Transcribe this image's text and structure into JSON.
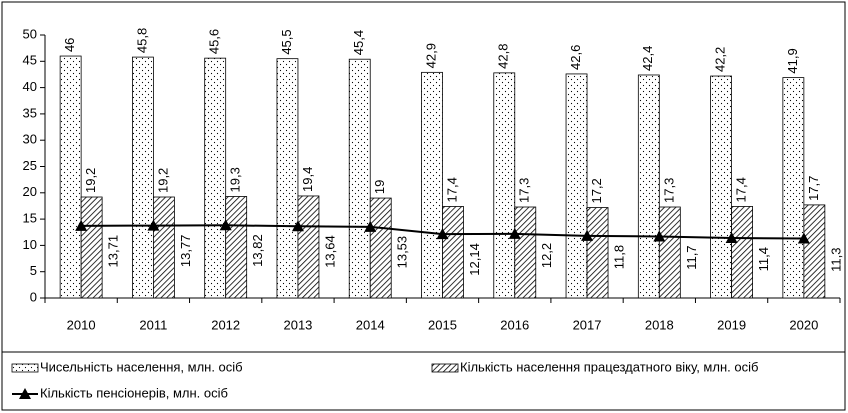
{
  "chart_data": {
    "type": "bar",
    "categories": [
      "2010",
      "2011",
      "2012",
      "2013",
      "2014",
      "2015",
      "2016",
      "2017",
      "2018",
      "2019",
      "2020"
    ],
    "series": [
      {
        "name": "Чисельність населення, млн. осіб",
        "type": "bar",
        "pattern": "dots",
        "color": "#000000",
        "values": [
          46,
          45.8,
          45.6,
          45.5,
          45.4,
          42.9,
          42.8,
          42.6,
          42.4,
          42.2,
          41.9
        ],
        "value_labels": [
          "46",
          "45,8",
          "45,6",
          "45,5",
          "45,4",
          "42,9",
          "42,8",
          "42,6",
          "42,4",
          "42,2",
          "41,9"
        ]
      },
      {
        "name": "Кількість населення працездатного віку, млн. осіб",
        "type": "bar",
        "pattern": "hatch",
        "color": "#000000",
        "values": [
          19.2,
          19.2,
          19.3,
          19.4,
          19,
          17.4,
          17.3,
          17.2,
          17.3,
          17.4,
          17.7
        ],
        "value_labels": [
          "19,2",
          "19,2",
          "19,3",
          "19,4",
          "19",
          "17,4",
          "17,3",
          "17,2",
          "17,3",
          "17,4",
          "17,7"
        ]
      },
      {
        "name": "Кількість пенсіонерів, млн. осіб",
        "type": "line",
        "color": "#000000",
        "values": [
          13.71,
          13.77,
          13.82,
          13.64,
          13.53,
          12.14,
          12.2,
          11.8,
          11.7,
          11.4,
          11.3
        ],
        "value_labels": [
          "13,71",
          "13,77",
          "13,82",
          "13,64",
          "13,53",
          "12,14",
          "12,2",
          "11,8",
          "11,7",
          "11,4",
          "11,3"
        ]
      }
    ],
    "ylim": [
      0,
      50
    ],
    "yticks": [
      0,
      5,
      10,
      15,
      20,
      25,
      30,
      35,
      40,
      45,
      50
    ]
  }
}
